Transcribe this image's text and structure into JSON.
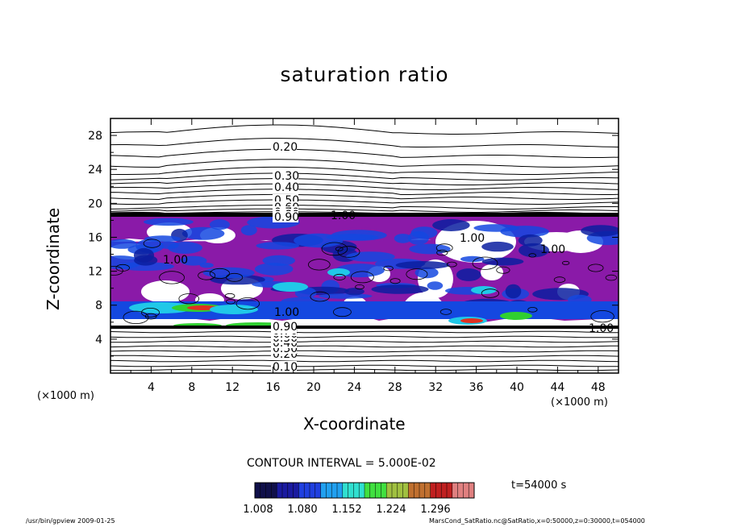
{
  "chart_data": {
    "type": "heatmap",
    "title": "saturation ratio",
    "xlabel": "X-coordinate",
    "ylabel": "Z-coordinate",
    "x_unit_left": "(×1000 m)",
    "x_unit_right": "(×1000 m)",
    "xlim": [
      0,
      50
    ],
    "ylim": [
      0,
      30
    ],
    "x_ticks": [
      "4",
      "8",
      "12",
      "16",
      "20",
      "24",
      "28",
      "32",
      "36",
      "40",
      "44",
      "48"
    ],
    "y_ticks": [
      "4",
      "8",
      "12",
      "16",
      "20",
      "24",
      "28"
    ],
    "contour_labels_upper": [
      "0.20",
      "0.30",
      "0.40",
      "0.50",
      "0.60",
      "0.70",
      "0.80",
      "0.90"
    ],
    "contour_labels_lower": [
      "0.10",
      "0.20",
      "0.30",
      "0.40",
      "0.50",
      "0.60",
      "0.70",
      "0.80",
      "0.90"
    ],
    "contour_labels_mid": [
      "1.00",
      "1.00",
      "1.00",
      "1.00",
      "1.00",
      "1.00"
    ],
    "contour_interval": "CONTOUR INTERVAL = 5.000E-02",
    "colorbar_ticks": [
      "1.008",
      "1.080",
      "1.152",
      "1.224",
      "1.296"
    ],
    "colorbar_range": [
      1.008,
      1.296
    ],
    "time": "t=54000 s",
    "colors": {
      "purple": "#8a1aa8",
      "deep_blue": "#0a1fa0",
      "blue": "#1448e0",
      "cyan": "#20c8e8",
      "green": "#30d030",
      "red": "#e03020"
    }
  },
  "footer": {
    "left": "/usr/bin/gpview   2009-01-25",
    "right": "MarsCond_SatRatio.nc@SatRatio,x=0:50000,z=0:30000,t=054000"
  }
}
